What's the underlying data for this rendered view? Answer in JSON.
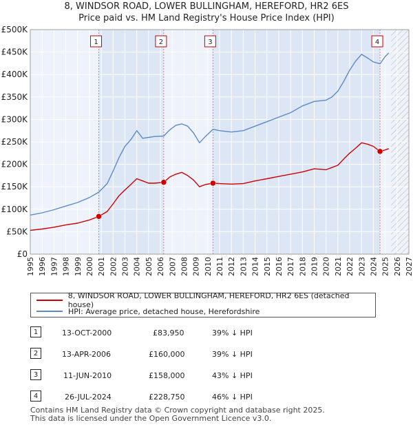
{
  "chart_data": {
    "type": "line",
    "title": "8, WINDSOR ROAD, LOWER BULLINGHAM, HEREFORD, HR2 6ES",
    "subtitle": "Price paid vs. HM Land Registry's House Price Index (HPI)",
    "xlabel": "",
    "ylabel": "",
    "xlim": [
      1995,
      2027
    ],
    "ylim": [
      0,
      500000
    ],
    "y_ticks": [
      {
        "value": 0,
        "label": "£0"
      },
      {
        "value": 50000,
        "label": "£50K"
      },
      {
        "value": 100000,
        "label": "£100K"
      },
      {
        "value": 150000,
        "label": "£150K"
      },
      {
        "value": 200000,
        "label": "£200K"
      },
      {
        "value": 250000,
        "label": "£250K"
      },
      {
        "value": 300000,
        "label": "£300K"
      },
      {
        "value": 350000,
        "label": "£350K"
      },
      {
        "value": 400000,
        "label": "£400K"
      },
      {
        "value": 450000,
        "label": "£450K"
      },
      {
        "value": 500000,
        "label": "£500K"
      }
    ],
    "x_ticks": [
      "1995",
      "1996",
      "1997",
      "1998",
      "1999",
      "2000",
      "2001",
      "2002",
      "2003",
      "2004",
      "2005",
      "2006",
      "2007",
      "2008",
      "2009",
      "2010",
      "2011",
      "2012",
      "2013",
      "2014",
      "2015",
      "2016",
      "2017",
      "2018",
      "2019",
      "2020",
      "2021",
      "2022",
      "2023",
      "2024",
      "2025",
      "2026",
      "2027"
    ],
    "hatch_from": 2025.5,
    "grid": true,
    "series": [
      {
        "name": "8, WINDSOR ROAD, LOWER BULLINGHAM, HEREFORD, HR2 6ES (detached house)",
        "color": "#cc0000",
        "x": [
          1995,
          1996,
          1997,
          1998,
          1999,
          2000,
          2000.79,
          2001.5,
          2002,
          2002.5,
          2003,
          2003.5,
          2004,
          2004.5,
          2005,
          2005.5,
          2006.28,
          2006.8,
          2007.3,
          2007.8,
          2008.3,
          2008.8,
          2009.3,
          2009.8,
          2010.44,
          2011,
          2012,
          2013,
          2014,
          2015,
          2016,
          2017,
          2018,
          2019,
          2020,
          2020.5,
          2021,
          2021.5,
          2022,
          2022.5,
          2023,
          2023.5,
          2024,
          2024.56,
          2025,
          2025.3
        ],
        "values": [
          53000,
          56000,
          60000,
          65000,
          69000,
          76000,
          83950,
          95000,
          112000,
          130000,
          143000,
          155000,
          168000,
          163000,
          158000,
          158000,
          160000,
          172000,
          178000,
          182000,
          175000,
          165000,
          150000,
          155000,
          158000,
          157000,
          156000,
          157000,
          163000,
          168000,
          173000,
          178000,
          183000,
          190000,
          188000,
          193000,
          198000,
          212000,
          225000,
          236000,
          248000,
          245000,
          240000,
          228750,
          232000,
          235000
        ]
      },
      {
        "name": "HPI: Average price, detached house, Herefordshire",
        "color": "#5a8ac6",
        "x": [
          1995,
          1996,
          1997,
          1998,
          1999,
          2000,
          2000.79,
          2001.5,
          2002,
          2002.5,
          2003,
          2003.5,
          2004,
          2004.5,
          2005,
          2005.5,
          2006.28,
          2006.8,
          2007.3,
          2007.8,
          2008.3,
          2008.8,
          2009.3,
          2009.8,
          2010.44,
          2011,
          2012,
          2013,
          2014,
          2015,
          2016,
          2017,
          2018,
          2019,
          2020,
          2020.5,
          2021,
          2021.5,
          2022,
          2022.5,
          2023,
          2023.5,
          2024,
          2024.56,
          2025,
          2025.3
        ],
        "values": [
          87000,
          92000,
          99000,
          107000,
          115000,
          126000,
          138000,
          157000,
          185000,
          215000,
          240000,
          255000,
          275000,
          258000,
          260000,
          262000,
          263000,
          277000,
          287000,
          290000,
          285000,
          270000,
          248000,
          262000,
          278000,
          275000,
          272000,
          275000,
          285000,
          295000,
          305000,
          315000,
          330000,
          340000,
          343000,
          350000,
          363000,
          385000,
          410000,
          430000,
          445000,
          437000,
          428000,
          424000,
          440000,
          448000
        ]
      }
    ],
    "sales_markers": [
      {
        "label": "1",
        "x": 2000.79,
        "value": 83950
      },
      {
        "label": "2",
        "x": 2006.28,
        "value": 160000
      },
      {
        "label": "3",
        "x": 2010.44,
        "value": 158000
      },
      {
        "label": "4",
        "x": 2024.56,
        "value": 228750
      }
    ]
  },
  "legend": {
    "property_label": "8, WINDSOR ROAD, LOWER BULLINGHAM, HEREFORD, HR2 6ES (detached house)",
    "hpi_label": "HPI: Average price, detached house, Herefordshire"
  },
  "sales": [
    {
      "num": "1",
      "date": "13-OCT-2000",
      "price": "£83,950",
      "hpi": "39% ↓ HPI"
    },
    {
      "num": "2",
      "date": "13-APR-2006",
      "price": "£160,000",
      "hpi": "39% ↓ HPI"
    },
    {
      "num": "3",
      "date": "11-JUN-2010",
      "price": "£158,000",
      "hpi": "43% ↓ HPI"
    },
    {
      "num": "4",
      "date": "26-JUL-2024",
      "price": "£228,750",
      "hpi": "46% ↓ HPI"
    }
  ],
  "footer": {
    "line1": "Contains HM Land Registry data © Crown copyright and database right 2025.",
    "line2": "This data is licensed under the Open Government Licence v3.0."
  }
}
